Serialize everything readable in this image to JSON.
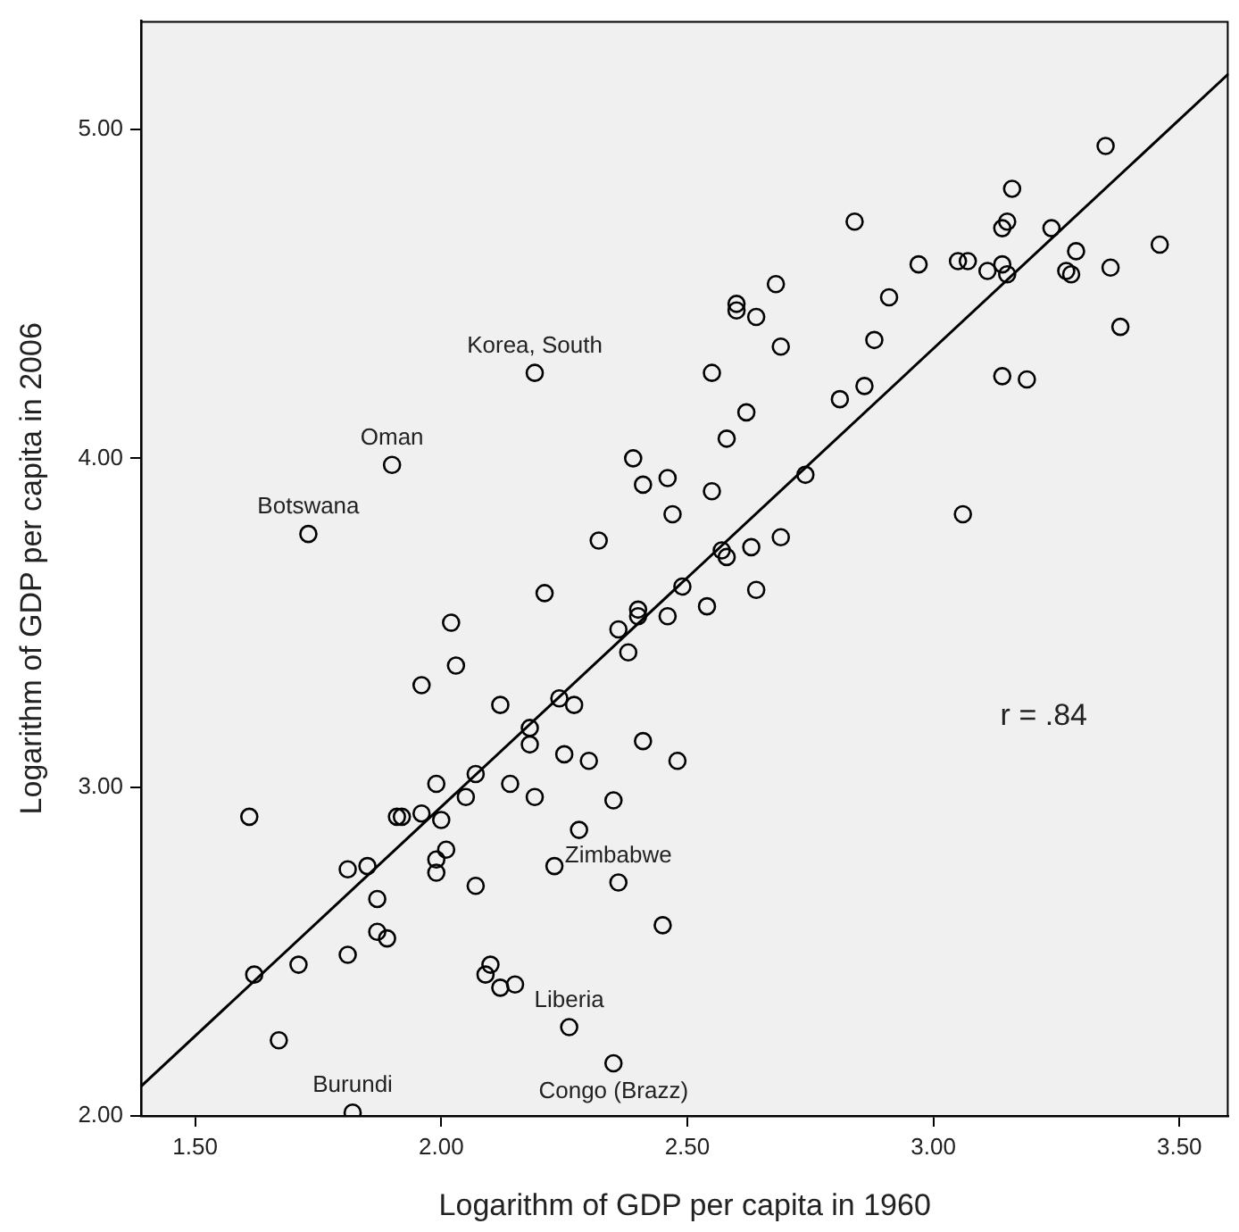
{
  "chart_data": {
    "type": "scatter",
    "xlabel": "Logarithm of GDP per capita in 1960",
    "ylabel": "Logarithm of GDP per capita in 2006",
    "xlim": [
      1.39,
      3.6
    ],
    "ylim": [
      2,
      5.33
    ],
    "xticks": [
      {
        "value": 1.5,
        "label": "1.50"
      },
      {
        "value": 2,
        "label": "2.00"
      },
      {
        "value": 2.5,
        "label": "2.50"
      },
      {
        "value": 3,
        "label": "3.00"
      },
      {
        "value": 3.5,
        "label": "3.50"
      }
    ],
    "yticks": [
      {
        "value": 2,
        "label": "2.00"
      },
      {
        "value": 3,
        "label": "3.00"
      },
      {
        "value": 4,
        "label": "4.00"
      },
      {
        "value": 5,
        "label": "5.00"
      }
    ],
    "marker": "circle",
    "legend": false,
    "series": [
      {
        "color": "#000000",
        "x": [
          2.19,
          1.9,
          1.73,
          2.32,
          2.21,
          2.02,
          2.03,
          1.96,
          2.12,
          2.24,
          2.27,
          2.18,
          2.18,
          2.25,
          2.3,
          2.14,
          2.19,
          2.35,
          1.99,
          2.05,
          2.07,
          1.96,
          1.91,
          1.92,
          2.0,
          2.28,
          1.61,
          1.81,
          1.85,
          1.99,
          2.01,
          1.99,
          2.23,
          2.07,
          2.36,
          1.87,
          1.87,
          1.89,
          1.81,
          1.62,
          1.71,
          2.1,
          2.09,
          2.12,
          2.15,
          2.45,
          2.26,
          1.67,
          1.82,
          2.35,
          2.36,
          2.49,
          2.64,
          2.54,
          2.4,
          2.4,
          2.46,
          2.38,
          2.41,
          2.48,
          3.35,
          3.16,
          2.84,
          3.14,
          3.15,
          3.24,
          3.46,
          3.29,
          2.97,
          3.05,
          3.07,
          3.11,
          3.14,
          3.15,
          3.27,
          3.28,
          3.36,
          2.68,
          2.91,
          2.6,
          2.6,
          2.64,
          3.38,
          2.69,
          2.88,
          2.55,
          2.86,
          2.81,
          3.14,
          3.19,
          2.62,
          2.58,
          2.39,
          2.41,
          2.46,
          2.55,
          2.47,
          2.74,
          3.06,
          2.69,
          2.63,
          2.57,
          2.58
        ],
        "values": [
          4.26,
          3.98,
          3.77,
          3.75,
          3.59,
          3.5,
          3.37,
          3.31,
          3.25,
          3.27,
          3.25,
          3.18,
          3.13,
          3.1,
          3.08,
          3.01,
          2.97,
          2.96,
          3.01,
          2.97,
          3.04,
          2.92,
          2.91,
          2.91,
          2.9,
          2.87,
          2.91,
          2.75,
          2.76,
          2.78,
          2.81,
          2.74,
          2.76,
          2.7,
          2.71,
          2.66,
          2.56,
          2.54,
          2.49,
          2.43,
          2.46,
          2.46,
          2.43,
          2.39,
          2.4,
          2.58,
          2.27,
          2.23,
          2.01,
          2.16,
          3.48,
          3.61,
          3.6,
          3.55,
          3.54,
          3.52,
          3.52,
          3.41,
          3.14,
          3.08,
          4.95,
          4.82,
          4.72,
          4.7,
          4.72,
          4.7,
          4.65,
          4.63,
          4.59,
          4.6,
          4.6,
          4.57,
          4.59,
          4.56,
          4.57,
          4.56,
          4.58,
          4.53,
          4.49,
          4.47,
          4.45,
          4.43,
          4.4,
          4.34,
          4.36,
          4.26,
          4.22,
          4.18,
          4.25,
          4.24,
          4.14,
          4.06,
          4.0,
          3.92,
          3.94,
          3.9,
          3.83,
          3.95,
          3.83,
          3.76,
          3.73,
          3.72,
          3.7
        ]
      },
      {
        "type": "line",
        "color": "#000000",
        "x": [
          1.39,
          3.6
        ],
        "values": [
          2.09,
          5.17
        ],
        "marker": "none",
        "line_style": "solid"
      }
    ],
    "annotations": [
      {
        "text": "Korea, South",
        "x": 2.19,
        "y": 4.26
      },
      {
        "text": "Oman",
        "x": 1.9,
        "y": 3.98
      },
      {
        "text": "Botswana",
        "x": 1.73,
        "y": 3.77
      },
      {
        "text": "Zimbabwe",
        "x": 2.36,
        "y": 2.71
      },
      {
        "text": "Liberia",
        "x": 2.26,
        "y": 2.27
      },
      {
        "text": "Burundi",
        "x": 1.82,
        "y": 2.01
      },
      {
        "text": "Congo (Brazz)",
        "x": 2.35,
        "y": 2.16
      },
      "r = .84"
    ]
  }
}
